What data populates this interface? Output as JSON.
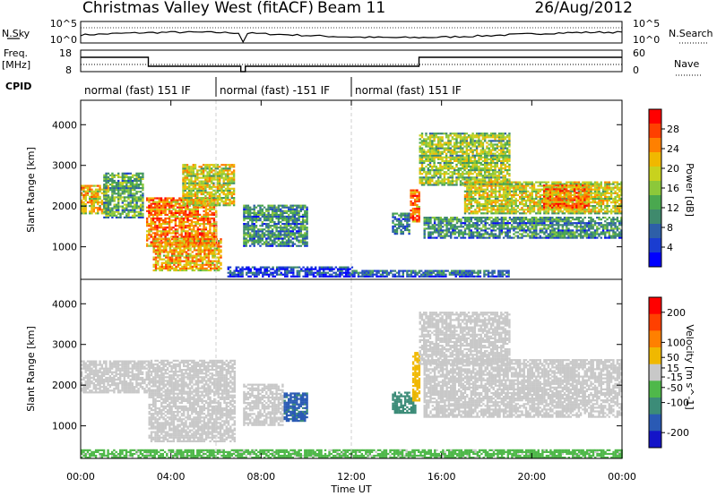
{
  "header": {
    "station": "Christmas Valley West (fitACF)",
    "beam": "Beam 11",
    "date": "26/Aug/2012"
  },
  "noise_panel": {
    "left_label": "N.Sky",
    "right_label": "N.Search",
    "left_ticks": [
      "10^5",
      "10^0"
    ],
    "right_ticks": [
      "10^5",
      "10^0"
    ]
  },
  "freq_panel": {
    "left_label_1": "Freq.",
    "left_label_2": "[MHz]",
    "right_label": "Nave",
    "left_ticks": [
      "18",
      "8"
    ],
    "right_ticks": [
      "60",
      "0"
    ]
  },
  "cpid": {
    "label": "CPID",
    "segments": [
      {
        "start_hour": 0,
        "end_hour": 6,
        "text": "normal (fast) 151 IF"
      },
      {
        "start_hour": 6,
        "end_hour": 12,
        "text": "normal (fast) -151 IF"
      },
      {
        "start_hour": 12,
        "end_hour": 24,
        "text": "normal (fast) 151 IF"
      }
    ]
  },
  "chart_data": [
    {
      "type": "heatmap",
      "panel": "power",
      "ylabel": "Slant Range [km]",
      "xlabel": "",
      "x_range_hours": [
        0,
        24
      ],
      "ylim": [
        200,
        4600
      ],
      "y_ticks": [
        1000,
        2000,
        3000,
        4000
      ],
      "colorbar": {
        "label": "Power [dB]",
        "ticks": [
          4,
          8,
          12,
          16,
          20,
          24,
          28
        ],
        "range": [
          0,
          32
        ],
        "colors": [
          "#0000ff",
          "#1a3dd1",
          "#2e5fa8",
          "#3f8a6d",
          "#4aa84f",
          "#8cc83a",
          "#c8d21e",
          "#f0b800",
          "#ff8000",
          "#ff4000",
          "#ff0000"
        ]
      },
      "echo_bands": [
        {
          "t0": 0.0,
          "t1": 1.2,
          "r0": 1800,
          "r1": 2500,
          "v": 22
        },
        {
          "t0": 1.0,
          "t1": 2.8,
          "r0": 1700,
          "r1": 2800,
          "v": 14
        },
        {
          "t0": 2.9,
          "t1": 6.0,
          "r0": 1000,
          "r1": 2200,
          "v": 26
        },
        {
          "t0": 3.2,
          "t1": 6.2,
          "r0": 400,
          "r1": 1200,
          "v": 24
        },
        {
          "t0": 4.5,
          "t1": 6.8,
          "r0": 2000,
          "r1": 3000,
          "v": 20
        },
        {
          "t0": 7.2,
          "t1": 10.0,
          "r0": 1000,
          "r1": 2000,
          "v": 12
        },
        {
          "t0": 6.5,
          "t1": 12.0,
          "r0": 250,
          "r1": 500,
          "v": 6
        },
        {
          "t0": 12.0,
          "t1": 19.0,
          "r0": 250,
          "r1": 400,
          "v": 8
        },
        {
          "t0": 13.8,
          "t1": 14.6,
          "r0": 1300,
          "r1": 1800,
          "v": 10
        },
        {
          "t0": 14.6,
          "t1": 15.0,
          "r0": 1600,
          "r1": 2400,
          "v": 28
        },
        {
          "t0": 15.0,
          "t1": 19.0,
          "r0": 2500,
          "r1": 3800,
          "v": 18
        },
        {
          "t0": 15.2,
          "t1": 24.0,
          "r0": 1200,
          "r1": 1700,
          "v": 12
        },
        {
          "t0": 17.0,
          "t1": 24.0,
          "r0": 1800,
          "r1": 2600,
          "v": 20
        },
        {
          "t0": 20.5,
          "t1": 22.5,
          "r0": 1900,
          "r1": 2500,
          "v": 26
        }
      ]
    },
    {
      "type": "heatmap",
      "panel": "velocity",
      "ylabel": "Slant Range [km]",
      "xlabel": "Time UT",
      "x_range_hours": [
        0,
        24
      ],
      "x_tick_labels": [
        "00:00",
        "04:00",
        "08:00",
        "12:00",
        "16:00",
        "20:00",
        "00:00"
      ],
      "ylim": [
        200,
        4600
      ],
      "y_ticks": [
        1000,
        2000,
        3000,
        4000
      ],
      "colorbar": {
        "label": "Velocity [m s^-1]",
        "ticks": [
          200,
          100,
          50,
          15,
          -15,
          -50,
          -100,
          -200
        ],
        "range": [
          -250,
          250
        ],
        "colors": [
          "#1414c8",
          "#2a5ab4",
          "#3c8c78",
          "#4fb84a",
          "#c8c8c8",
          "#f0b800",
          "#ff8000",
          "#ff4000",
          "#ff0000"
        ]
      },
      "echo_bands": [
        {
          "t0": 0.0,
          "t1": 3.0,
          "r0": 1800,
          "r1": 2600,
          "v": 0
        },
        {
          "t0": 3.0,
          "t1": 6.8,
          "r0": 600,
          "r1": 2600,
          "v": 0
        },
        {
          "t0": 7.2,
          "t1": 9.0,
          "r0": 1000,
          "r1": 2000,
          "v": 0
        },
        {
          "t0": 9.0,
          "t1": 10.0,
          "r0": 1100,
          "r1": 1800,
          "v": -150
        },
        {
          "t0": 0.0,
          "t1": 24.0,
          "r0": 200,
          "r1": 400,
          "v": -40
        },
        {
          "t0": 13.8,
          "t1": 14.8,
          "r0": 1300,
          "r1": 1800,
          "v": -120
        },
        {
          "t0": 14.7,
          "t1": 15.0,
          "r0": 1600,
          "r1": 2800,
          "v": 60
        },
        {
          "t0": 15.0,
          "t1": 19.0,
          "r0": 2500,
          "r1": 3800,
          "v": 0
        },
        {
          "t0": 15.2,
          "t1": 24.0,
          "r0": 1200,
          "r1": 2600,
          "v": 0
        }
      ]
    }
  ]
}
